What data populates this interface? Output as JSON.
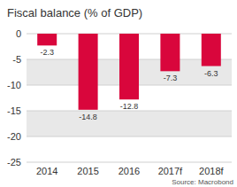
{
  "chart_data": {
    "type": "bar",
    "title": "Fiscal balance (% of GDP)",
    "source": "Source: Macrobond",
    "categories": [
      "2014",
      "2015",
      "2016",
      "2017f",
      "2018f"
    ],
    "values": [
      -2.3,
      -14.8,
      -12.8,
      -7.3,
      -6.3
    ],
    "color": "#d9063c",
    "ylim": [
      -25,
      0
    ],
    "yticks": [
      0,
      -5,
      -10,
      -15,
      -20,
      -25
    ],
    "grid": true,
    "data_labels": true
  }
}
